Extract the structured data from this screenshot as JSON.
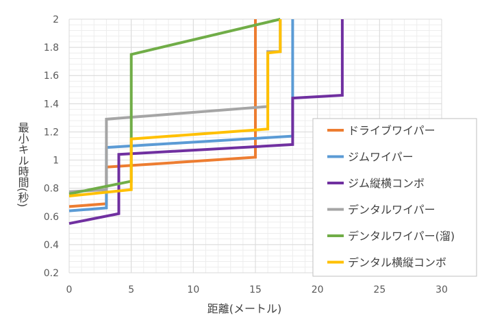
{
  "chart_data": {
    "type": "line",
    "xlabel": "距離(メートル)",
    "ylabel": "最小キル時間(秒)",
    "xlim": [
      0,
      30
    ],
    "ylim": [
      0.2,
      2
    ],
    "x_ticks": [
      "0",
      "5",
      "10",
      "15",
      "20",
      "25",
      "30"
    ],
    "y_ticks": [
      "0.2",
      "0.4",
      "0.6",
      "0.8",
      "1",
      "1.2",
      "1.4",
      "1.6",
      "1.8",
      "2"
    ],
    "grid": true,
    "legend_position": "right",
    "series": [
      {
        "name": "ドライブワイパー",
        "color": "#ED7D31",
        "points": [
          [
            0,
            0.67
          ],
          [
            3,
            0.69
          ],
          [
            3,
            0.95
          ],
          [
            15,
            1.02
          ],
          [
            15,
            2.0
          ]
        ]
      },
      {
        "name": "ジムワイパー",
        "color": "#5B9BD5",
        "points": [
          [
            0,
            0.64
          ],
          [
            3,
            0.66
          ],
          [
            3,
            1.09
          ],
          [
            18,
            1.17
          ],
          [
            18,
            2.0
          ]
        ]
      },
      {
        "name": "ジム縦横コンボ",
        "color": "#7030A0",
        "points": [
          [
            0,
            0.55
          ],
          [
            4,
            0.62
          ],
          [
            4,
            1.04
          ],
          [
            18,
            1.11
          ],
          [
            18,
            1.44
          ],
          [
            22,
            1.46
          ],
          [
            22,
            2.0
          ]
        ]
      },
      {
        "name": "デンタルワイパー",
        "color": "#A5A5A5",
        "points": [
          [
            0,
            0.775
          ],
          [
            3,
            0.79
          ],
          [
            3,
            1.29
          ],
          [
            16,
            1.38
          ],
          [
            16,
            1.77
          ],
          [
            17,
            1.77
          ],
          [
            17,
            2.0
          ]
        ]
      },
      {
        "name": "デンタルワイパー(溜)",
        "color": "#70AD47",
        "points": [
          [
            0,
            0.76
          ],
          [
            5,
            0.85
          ],
          [
            5,
            1.75
          ],
          [
            17,
            2.0
          ]
        ]
      },
      {
        "name": "デンタル横縦コンボ",
        "color": "#FFC000",
        "points": [
          [
            0,
            0.745
          ],
          [
            5,
            0.79
          ],
          [
            5,
            1.15
          ],
          [
            16,
            1.22
          ],
          [
            16,
            1.76
          ],
          [
            17,
            1.77
          ],
          [
            17,
            2.0
          ]
        ]
      }
    ]
  }
}
